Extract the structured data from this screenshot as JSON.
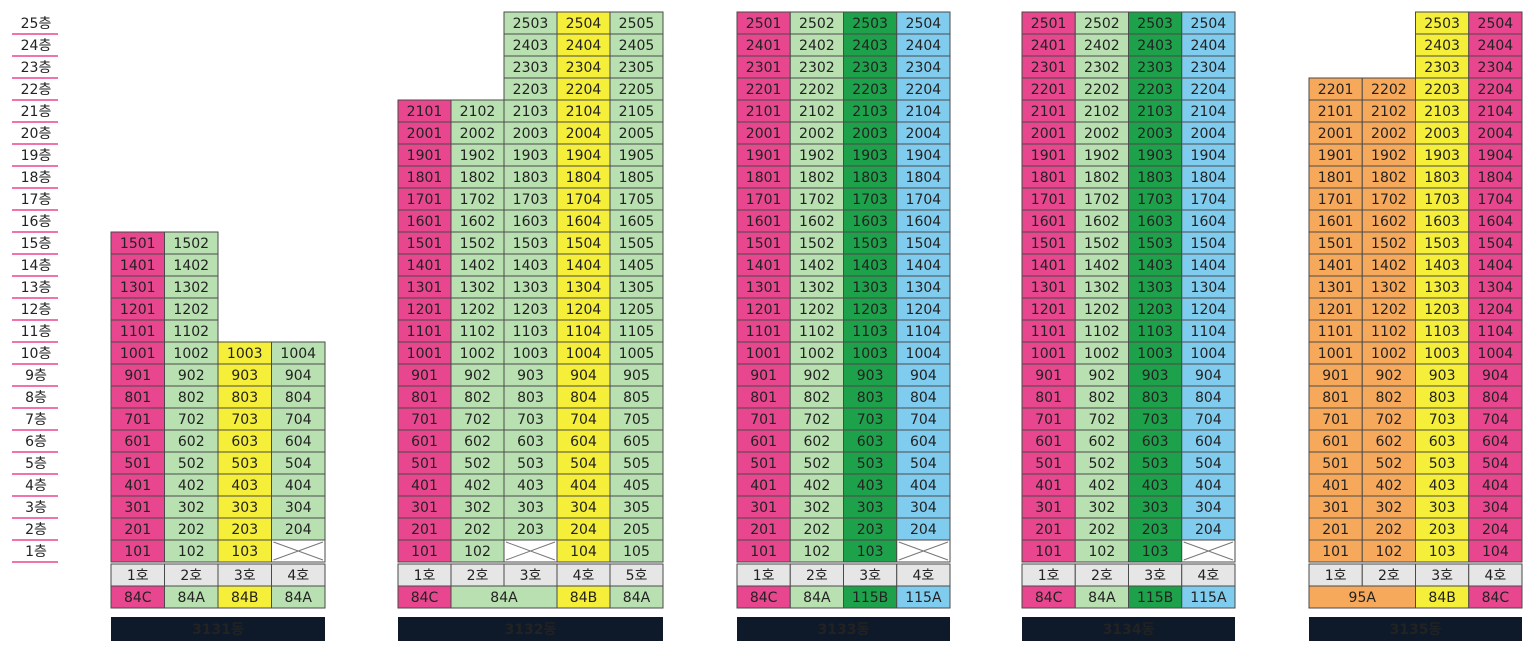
{
  "floors": [
    "25층",
    "24층",
    "23층",
    "22층",
    "21층",
    "20층",
    "19층",
    "18층",
    "17층",
    "16층",
    "15층",
    "14층",
    "13층",
    "12층",
    "11층",
    "10층",
    "9층",
    "8층",
    "7층",
    "6층",
    "5층",
    "4층",
    "3층",
    "2층",
    "1층"
  ],
  "buildings": [
    {
      "name": "3131동",
      "lines": [
        "1호",
        "2호",
        "3호",
        "4호"
      ],
      "types": [
        "84C",
        "84A",
        "84B",
        "84A"
      ],
      "colors": [
        "#e8478f",
        "#b9e0b1",
        "#f5ef3a",
        "#b9e0b1"
      ],
      "rows": [
        [
          "101",
          "102",
          "103",
          null
        ],
        [
          "201",
          "202",
          "203",
          "204"
        ],
        [
          "301",
          "302",
          "303",
          "304"
        ],
        [
          "401",
          "402",
          "403",
          "404"
        ],
        [
          "501",
          "502",
          "503",
          "504"
        ],
        [
          "601",
          "602",
          "603",
          "604"
        ],
        [
          "701",
          "702",
          "703",
          "704"
        ],
        [
          "801",
          "802",
          "803",
          "804"
        ],
        [
          "901",
          "902",
          "903",
          "904"
        ],
        [
          "1001",
          "1002",
          "1003",
          "1004"
        ],
        [
          "1101",
          "1102",
          null,
          null
        ],
        [
          "1201",
          "1202",
          null,
          null
        ],
        [
          "1301",
          "1302",
          null,
          null
        ],
        [
          "1401",
          "1402",
          null,
          null
        ],
        [
          "1501",
          "1502",
          null,
          null
        ]
      ]
    },
    {
      "name": "3132동",
      "lines": [
        "1호",
        "2호",
        "3호",
        "4호",
        "5호"
      ],
      "types": [
        "84C",
        "84A",
        null,
        "84B",
        "84A"
      ],
      "colors": [
        "#e8478f",
        "#b9e0b1",
        "#b9e0b1",
        "#f5ef3a",
        "#b9e0b1"
      ],
      "rows": [
        [
          "101",
          "102",
          null,
          "104",
          "105"
        ],
        [
          "201",
          "202",
          "203",
          "204",
          "205"
        ],
        [
          "301",
          "302",
          "303",
          "304",
          "305"
        ],
        [
          "401",
          "402",
          "403",
          "404",
          "405"
        ],
        [
          "501",
          "502",
          "503",
          "504",
          "505"
        ],
        [
          "601",
          "602",
          "603",
          "604",
          "605"
        ],
        [
          "701",
          "702",
          "703",
          "704",
          "705"
        ],
        [
          "801",
          "802",
          "803",
          "804",
          "805"
        ],
        [
          "901",
          "902",
          "903",
          "904",
          "905"
        ],
        [
          "1001",
          "1002",
          "1003",
          "1004",
          "1005"
        ],
        [
          "1101",
          "1102",
          "1103",
          "1104",
          "1105"
        ],
        [
          "1201",
          "1202",
          "1203",
          "1204",
          "1205"
        ],
        [
          "1301",
          "1302",
          "1303",
          "1304",
          "1305"
        ],
        [
          "1401",
          "1402",
          "1403",
          "1404",
          "1405"
        ],
        [
          "1501",
          "1502",
          "1503",
          "1504",
          "1505"
        ],
        [
          "1601",
          "1602",
          "1603",
          "1604",
          "1605"
        ],
        [
          "1701",
          "1702",
          "1703",
          "1704",
          "1705"
        ],
        [
          "1801",
          "1802",
          "1803",
          "1804",
          "1805"
        ],
        [
          "1901",
          "1902",
          "1903",
          "1904",
          "1905"
        ],
        [
          "2001",
          "2002",
          "2003",
          "2004",
          "2005"
        ],
        [
          "2101",
          "2102",
          "2103",
          "2104",
          "2105"
        ],
        [
          null,
          null,
          "2203",
          "2204",
          "2205"
        ],
        [
          null,
          null,
          "2303",
          "2304",
          "2305"
        ],
        [
          null,
          null,
          "2403",
          "2404",
          "2405"
        ],
        [
          null,
          null,
          "2503",
          "2504",
          "2505"
        ]
      ]
    },
    {
      "name": "3133동",
      "lines": [
        "1호",
        "2호",
        "3호",
        "4호"
      ],
      "types": [
        "84C",
        "84A",
        "115B",
        "115A"
      ],
      "colors": [
        "#e8478f",
        "#b9e0b1",
        "#1ea14b",
        "#80ccef"
      ],
      "rows": [
        [
          "101",
          "102",
          "103",
          null
        ],
        [
          "201",
          "202",
          "203",
          "204"
        ],
        [
          "301",
          "302",
          "303",
          "304"
        ],
        [
          "401",
          "402",
          "403",
          "404"
        ],
        [
          "501",
          "502",
          "503",
          "504"
        ],
        [
          "601",
          "602",
          "603",
          "604"
        ],
        [
          "701",
          "702",
          "703",
          "704"
        ],
        [
          "801",
          "802",
          "803",
          "804"
        ],
        [
          "901",
          "902",
          "903",
          "904"
        ],
        [
          "1001",
          "1002",
          "1003",
          "1004"
        ],
        [
          "1101",
          "1102",
          "1103",
          "1104"
        ],
        [
          "1201",
          "1202",
          "1203",
          "1204"
        ],
        [
          "1301",
          "1302",
          "1303",
          "1304"
        ],
        [
          "1401",
          "1402",
          "1403",
          "1404"
        ],
        [
          "1501",
          "1502",
          "1503",
          "1504"
        ],
        [
          "1601",
          "1602",
          "1603",
          "1604"
        ],
        [
          "1701",
          "1702",
          "1703",
          "1704"
        ],
        [
          "1801",
          "1802",
          "1803",
          "1804"
        ],
        [
          "1901",
          "1902",
          "1903",
          "1904"
        ],
        [
          "2001",
          "2002",
          "2003",
          "2004"
        ],
        [
          "2101",
          "2102",
          "2103",
          "2104"
        ],
        [
          "2201",
          "2202",
          "2203",
          "2204"
        ],
        [
          "2301",
          "2302",
          "2303",
          "2304"
        ],
        [
          "2401",
          "2402",
          "2403",
          "2404"
        ],
        [
          "2501",
          "2502",
          "2503",
          "2504"
        ]
      ]
    },
    {
      "name": "3134동",
      "lines": [
        "1호",
        "2호",
        "3호",
        "4호"
      ],
      "types": [
        "84C",
        "84A",
        "115B",
        "115A"
      ],
      "colors": [
        "#e8478f",
        "#b9e0b1",
        "#1ea14b",
        "#80ccef"
      ],
      "rows": [
        [
          "101",
          "102",
          "103",
          null
        ],
        [
          "201",
          "202",
          "203",
          "204"
        ],
        [
          "301",
          "302",
          "303",
          "304"
        ],
        [
          "401",
          "402",
          "403",
          "404"
        ],
        [
          "501",
          "502",
          "503",
          "504"
        ],
        [
          "601",
          "602",
          "603",
          "604"
        ],
        [
          "701",
          "702",
          "703",
          "704"
        ],
        [
          "801",
          "802",
          "803",
          "804"
        ],
        [
          "901",
          "902",
          "903",
          "904"
        ],
        [
          "1001",
          "1002",
          "1003",
          "1004"
        ],
        [
          "1101",
          "1102",
          "1103",
          "1104"
        ],
        [
          "1201",
          "1202",
          "1203",
          "1204"
        ],
        [
          "1301",
          "1302",
          "1303",
          "1304"
        ],
        [
          "1401",
          "1402",
          "1403",
          "1404"
        ],
        [
          "1501",
          "1502",
          "1503",
          "1504"
        ],
        [
          "1601",
          "1602",
          "1603",
          "1604"
        ],
        [
          "1701",
          "1702",
          "1703",
          "1704"
        ],
        [
          "1801",
          "1802",
          "1803",
          "1804"
        ],
        [
          "1901",
          "1902",
          "1903",
          "1904"
        ],
        [
          "2001",
          "2002",
          "2003",
          "2004"
        ],
        [
          "2101",
          "2102",
          "2103",
          "2104"
        ],
        [
          "2201",
          "2202",
          "2203",
          "2204"
        ],
        [
          "2301",
          "2302",
          "2303",
          "2304"
        ],
        [
          "2401",
          "2402",
          "2403",
          "2404"
        ],
        [
          "2501",
          "2502",
          "2503",
          "2504"
        ]
      ]
    },
    {
      "name": "3135동",
      "lines": [
        "1호",
        "2호",
        "3호",
        "4호"
      ],
      "types": [
        "95A",
        null,
        "84B",
        "84C"
      ],
      "colors": [
        "#f7a95b",
        "#f7a95b",
        "#f5ef3a",
        "#e8478f"
      ],
      "rows": [
        [
          "101",
          "102",
          "103",
          "104"
        ],
        [
          "201",
          "202",
          "203",
          "204"
        ],
        [
          "301",
          "302",
          "303",
          "304"
        ],
        [
          "401",
          "402",
          "403",
          "404"
        ],
        [
          "501",
          "502",
          "503",
          "504"
        ],
        [
          "601",
          "602",
          "603",
          "604"
        ],
        [
          "701",
          "702",
          "703",
          "704"
        ],
        [
          "801",
          "802",
          "803",
          "804"
        ],
        [
          "901",
          "902",
          "903",
          "904"
        ],
        [
          "1001",
          "1002",
          "1003",
          "1004"
        ],
        [
          "1101",
          "1102",
          "1103",
          "1104"
        ],
        [
          "1201",
          "1202",
          "1203",
          "1204"
        ],
        [
          "1301",
          "1302",
          "1303",
          "1304"
        ],
        [
          "1401",
          "1402",
          "1403",
          "1404"
        ],
        [
          "1501",
          "1502",
          "1503",
          "1504"
        ],
        [
          "1601",
          "1602",
          "1603",
          "1604"
        ],
        [
          "1701",
          "1702",
          "1703",
          "1704"
        ],
        [
          "1801",
          "1802",
          "1803",
          "1804"
        ],
        [
          "1901",
          "1902",
          "1903",
          "1904"
        ],
        [
          "2001",
          "2002",
          "2003",
          "2004"
        ],
        [
          "2101",
          "2102",
          "2103",
          "2104"
        ],
        [
          "2201",
          "2202",
          "2203",
          "2204"
        ],
        [
          null,
          null,
          "2303",
          "2304"
        ],
        [
          null,
          null,
          "2403",
          "2404"
        ],
        [
          null,
          null,
          "2503",
          "2504"
        ]
      ]
    }
  ]
}
